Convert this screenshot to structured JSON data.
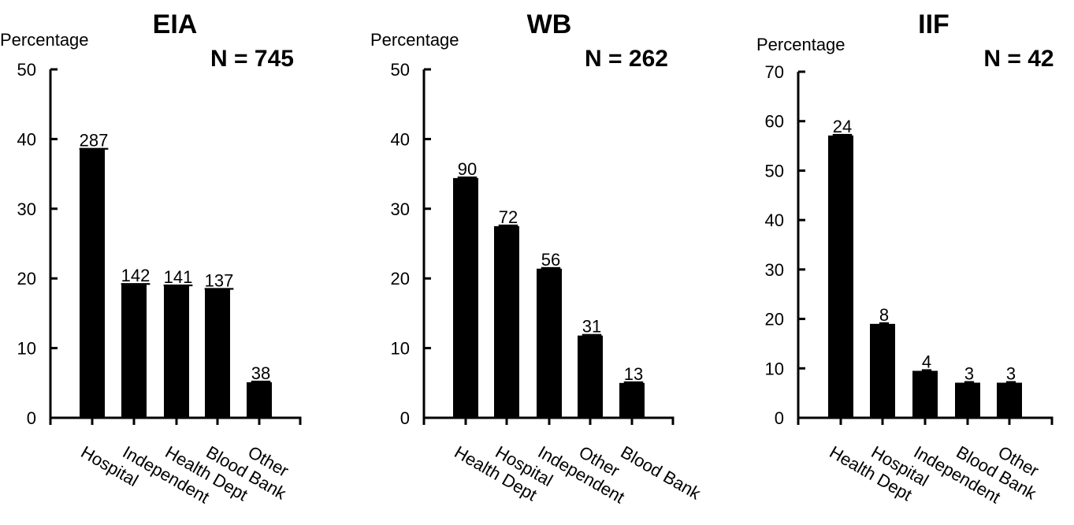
{
  "chart_data": [
    {
      "type": "bar",
      "title": "EIA",
      "n_label": "N = 745",
      "ylabel": "Percentage",
      "xlabel": "",
      "ylim": [
        0,
        50
      ],
      "yticks": [
        0,
        10,
        20,
        30,
        40,
        50
      ],
      "categories": [
        "Hospital",
        "Independent",
        "Health Dept",
        "Blood Bank",
        "Other"
      ],
      "values": [
        38.5,
        19.1,
        18.9,
        18.4,
        5.1
      ],
      "data_labels": [
        "287",
        "142",
        "141",
        "137",
        "38"
      ],
      "grid": false,
      "legend": "none"
    },
    {
      "type": "bar",
      "title": "WB",
      "n_label": "N = 262",
      "ylabel": "Percentage",
      "xlabel": "",
      "ylim": [
        0,
        50
      ],
      "yticks": [
        0,
        10,
        20,
        30,
        40,
        50
      ],
      "categories": [
        "Health Dept",
        "Hospital",
        "Independent",
        "Other",
        "Blood Bank"
      ],
      "values": [
        34.4,
        27.5,
        21.4,
        11.8,
        5.0
      ],
      "data_labels": [
        "90",
        "72",
        "56",
        "31",
        "13"
      ],
      "grid": false,
      "legend": "none"
    },
    {
      "type": "bar",
      "title": "IIF",
      "n_label": "N = 42",
      "ylabel": "Percentage",
      "xlabel": "",
      "ylim": [
        0,
        70
      ],
      "yticks": [
        0,
        10,
        20,
        30,
        40,
        50,
        60,
        70
      ],
      "categories": [
        "Health Dept",
        "Hospital",
        "Independent",
        "Blood Bank",
        "Other"
      ],
      "values": [
        57.1,
        19.0,
        9.5,
        7.1,
        7.1
      ],
      "data_labels": [
        "24",
        "8",
        "4",
        "3",
        "3"
      ],
      "grid": false,
      "legend": "none"
    }
  ]
}
